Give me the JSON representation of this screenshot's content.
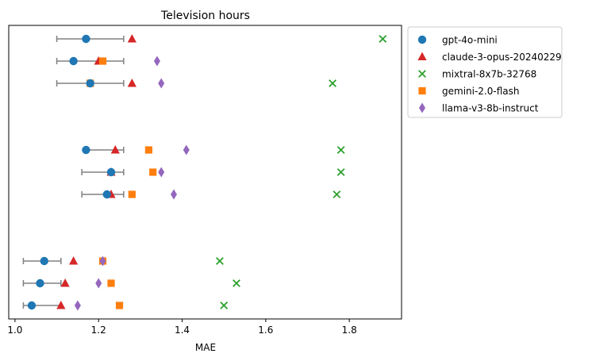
{
  "chart_data": {
    "type": "scatter",
    "title": "Television hours",
    "xlabel": "MAE",
    "ylabel": "",
    "xlim": [
      0.985,
      1.925
    ],
    "xticks": [
      1.0,
      1.2,
      1.4,
      1.6,
      1.8
    ],
    "xtick_labels": [
      "1.0",
      "1.2",
      "1.4",
      "1.6",
      "1.8"
    ],
    "grid": false,
    "legend_placement": "outside-right-top",
    "error_color": "#808080",
    "rows": [
      {
        "gpt": 1.17,
        "err": [
          1.1,
          1.26
        ]
      },
      {
        "gpt": 1.14,
        "err": [
          1.1,
          1.26
        ]
      },
      {
        "gpt": 1.18,
        "err": [
          1.1,
          1.26
        ]
      },
      {
        "gpt": 1.17,
        "err": [
          1.17,
          1.26
        ]
      },
      {
        "gpt": 1.23,
        "err": [
          1.16,
          1.26
        ]
      },
      {
        "gpt": 1.22,
        "err": [
          1.16,
          1.26
        ]
      },
      {
        "gpt": 1.07,
        "err": [
          1.02,
          1.11
        ]
      },
      {
        "gpt": 1.06,
        "err": [
          1.02,
          1.11
        ]
      },
      {
        "gpt": 1.04,
        "err": [
          1.02,
          1.11
        ]
      }
    ],
    "series": [
      {
        "name": "gpt-4o-mini",
        "marker": "circle",
        "color": "#1f77b4",
        "values": [
          1.17,
          1.14,
          1.18,
          1.17,
          1.23,
          1.22,
          1.07,
          1.06,
          1.04
        ]
      },
      {
        "name": "claude-3-opus-20240229",
        "marker": "triangle",
        "color": "#d62728",
        "values": [
          1.28,
          1.2,
          1.28,
          1.24,
          1.23,
          1.23,
          1.14,
          1.12,
          1.11
        ]
      },
      {
        "name": "mixtral-8x7b-32768",
        "marker": "x",
        "color": "#2ca02c",
        "values": [
          1.88,
          null,
          1.76,
          1.78,
          1.78,
          1.77,
          1.49,
          1.53,
          1.5
        ]
      },
      {
        "name": "gemini-2.0-flash",
        "marker": "square",
        "color": "#ff7f0e",
        "values": [
          null,
          1.21,
          1.18,
          1.32,
          1.33,
          1.28,
          1.21,
          1.23,
          1.25
        ]
      },
      {
        "name": "llama-v3-8b-instruct",
        "marker": "diamond",
        "color": "#9467bd",
        "values": [
          null,
          1.34,
          1.35,
          1.41,
          1.35,
          1.38,
          1.21,
          1.2,
          1.15
        ]
      }
    ]
  }
}
